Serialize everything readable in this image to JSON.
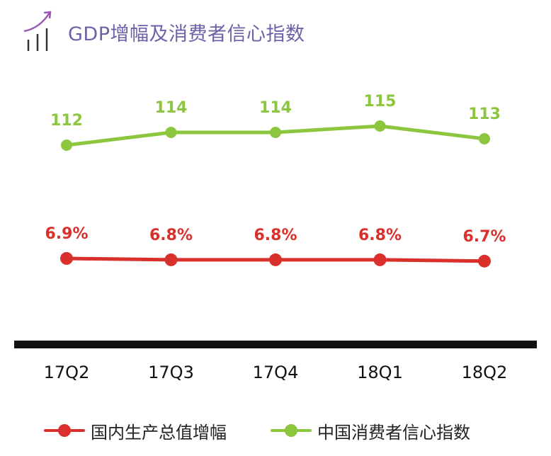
{
  "header": {
    "title": "GDP增幅及消费者信心指数",
    "icon": "chart-trend-icon"
  },
  "colors": {
    "title": "#6a63a8",
    "icon": "#9b59b6",
    "gdp": "#d9302c",
    "confidence": "#8cc63f",
    "axis": "#111111"
  },
  "chart_data": {
    "type": "line",
    "categories": [
      "17Q2",
      "17Q3",
      "17Q4",
      "18Q1",
      "18Q2"
    ],
    "series": [
      {
        "name": "国内生产总值增幅",
        "values": [
          6.9,
          6.8,
          6.8,
          6.8,
          6.7
        ],
        "labels": [
          "6.9%",
          "6.8%",
          "6.8%",
          "6.8%",
          "6.7%"
        ],
        "color": "#d9302c"
      },
      {
        "name": "中国消费者信心指数",
        "values": [
          112,
          114,
          114,
          115,
          113
        ],
        "labels": [
          "112",
          "114",
          "114",
          "115",
          "113"
        ],
        "color": "#8cc63f"
      }
    ],
    "axes": "independent per series",
    "grid": false,
    "legend_position": "bottom"
  }
}
